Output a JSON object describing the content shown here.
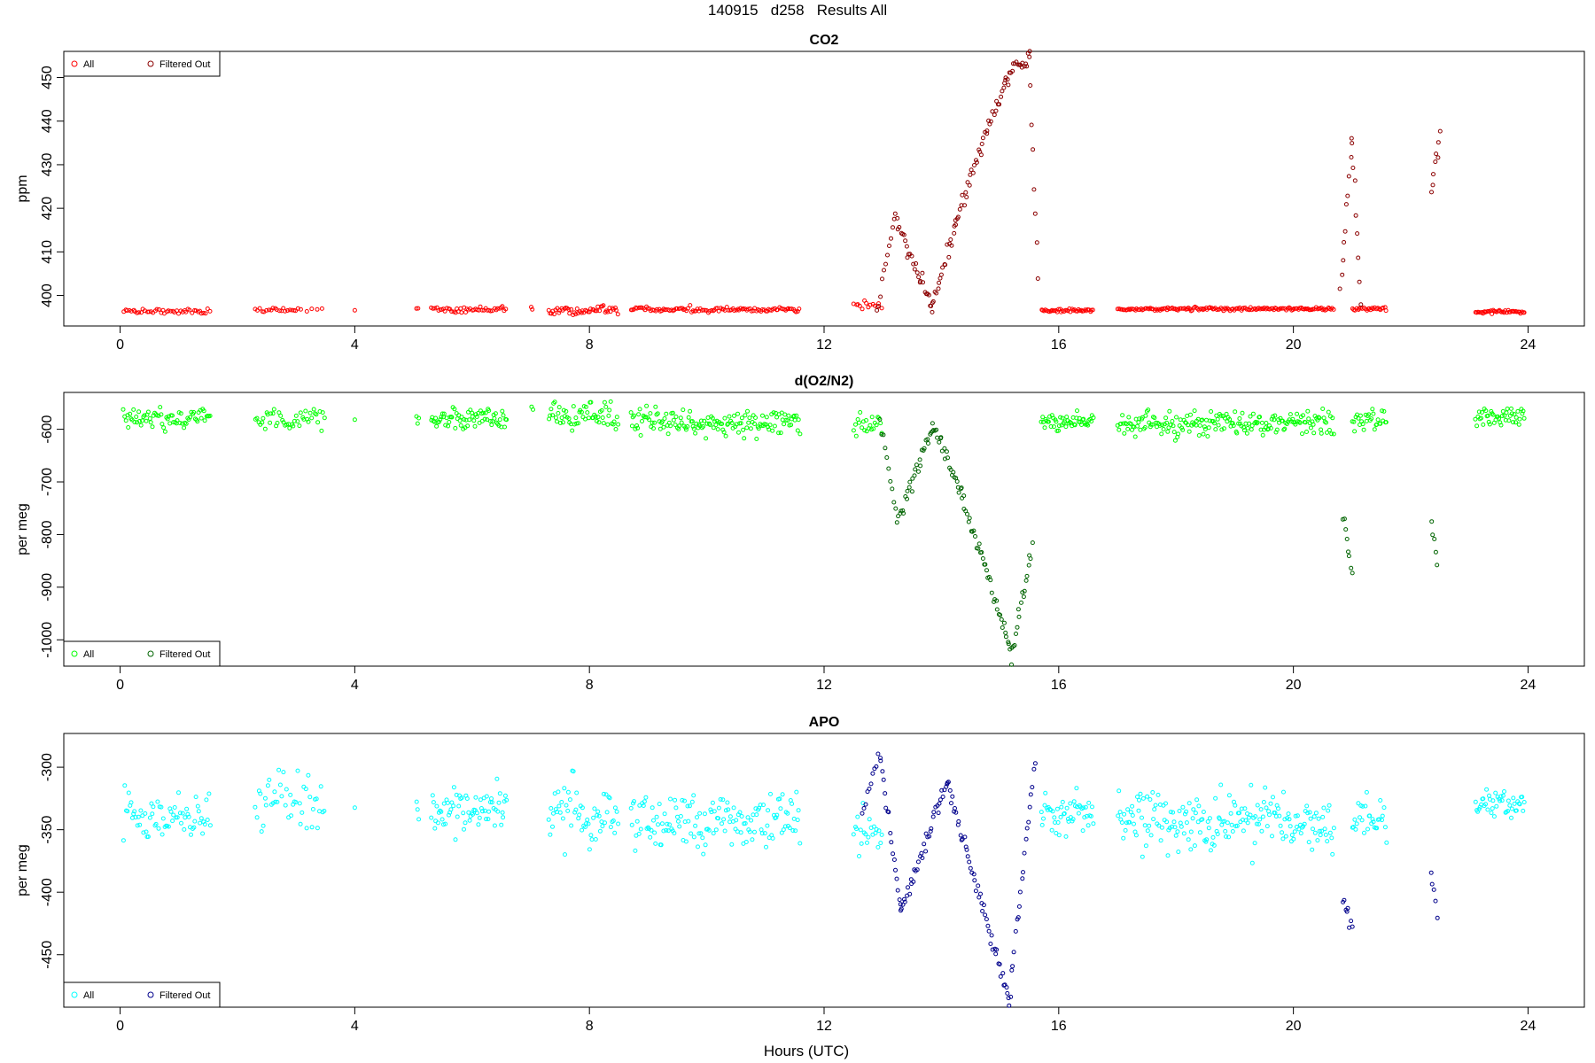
{
  "figure": {
    "super_title": "140915   d258   Results All",
    "xlabel": "Hours (UTC)"
  },
  "chart_data": [
    {
      "type": "scatter",
      "title": "CO2",
      "ylabel": "ppm",
      "xlim": [
        -0.96,
        24.96
      ],
      "ylim": [
        393,
        456
      ],
      "xticks": [
        0,
        4,
        8,
        12,
        16,
        20,
        24
      ],
      "yticks": [
        400,
        410,
        420,
        430,
        440,
        450
      ],
      "legend": {
        "position": "top-left",
        "entries": [
          "All",
          "Filtered Out"
        ]
      },
      "colors": {
        "all": "#ff0000",
        "filtered": "#8b0000"
      },
      "series": [
        {
          "name": "All",
          "segments": [
            {
              "x0": 0.05,
              "x1": 1.55,
              "level": 396.4,
              "noise": 0.3,
              "n": 45
            },
            {
              "x0": 2.3,
              "x1": 3.1,
              "level": 396.6,
              "noise": 0.3,
              "n": 22
            },
            {
              "x0": 3.15,
              "x1": 3.5,
              "level": 396.6,
              "noise": 0.3,
              "n": 4
            },
            {
              "x0": 4.0,
              "x1": 4.0,
              "level": 396.6,
              "noise": 0.2,
              "n": 1
            },
            {
              "x0": 5.05,
              "x1": 5.1,
              "level": 397.0,
              "noise": 0.2,
              "n": 2
            },
            {
              "x0": 5.3,
              "x1": 6.6,
              "level": 396.8,
              "noise": 0.3,
              "n": 45
            },
            {
              "x0": 7.0,
              "x1": 7.05,
              "level": 397.0,
              "noise": 0.2,
              "n": 2
            },
            {
              "x0": 7.3,
              "x1": 8.5,
              "level": 396.5,
              "noise": 0.5,
              "n": 50
            },
            {
              "x0": 8.7,
              "x1": 11.6,
              "level": 396.8,
              "noise": 0.3,
              "n": 110
            },
            {
              "x0": 12.5,
              "x1": 13.0,
              "level": 397.8,
              "noise": 0.6,
              "n": 14
            },
            {
              "x0": 15.7,
              "x1": 16.6,
              "level": 396.5,
              "noise": 0.2,
              "n": 40
            },
            {
              "x0": 17.0,
              "x1": 20.7,
              "level": 396.9,
              "noise": 0.2,
              "n": 160
            },
            {
              "x0": 21.0,
              "x1": 21.6,
              "level": 396.9,
              "noise": 0.2,
              "n": 25
            },
            {
              "x0": 23.1,
              "x1": 23.95,
              "level": 396.3,
              "noise": 0.2,
              "n": 40
            }
          ]
        },
        {
          "name": "Filtered Out",
          "peaks": [
            {
              "x": 13.2,
              "value": 418
            },
            {
              "x": 13.85,
              "value": 397.5
            },
            {
              "x": 14.25,
              "value": 417
            },
            {
              "x": 15.1,
              "value": 450
            },
            {
              "x": 15.5,
              "value": 455
            },
            {
              "x": 15.65,
              "value": 403
            },
            {
              "x": 20.8,
              "value": 400
            },
            {
              "x": 21.0,
              "value": 435
            },
            {
              "x": 21.15,
              "value": 398
            },
            {
              "x": 22.35,
              "value": 424
            },
            {
              "x": 22.5,
              "value": 437
            }
          ]
        }
      ]
    },
    {
      "type": "scatter",
      "title": "d(O2/N2)",
      "ylabel": "per meg",
      "xlim": [
        -0.96,
        24.96
      ],
      "ylim": [
        -1050,
        -530
      ],
      "xticks": [
        0,
        4,
        8,
        12,
        16,
        20,
        24
      ],
      "yticks": [
        -600,
        -700,
        -800,
        -900,
        -1000
      ],
      "legend": {
        "position": "bottom-left",
        "entries": [
          "All",
          "Filtered Out"
        ]
      },
      "colors": {
        "all": "#00ff00",
        "filtered": "#006400"
      },
      "series": [
        {
          "name": "All",
          "segments": [
            {
              "x0": 0.05,
              "x1": 1.55,
              "level": -580,
              "noise": 10,
              "n": 70
            },
            {
              "x0": 2.3,
              "x1": 3.5,
              "level": -582,
              "noise": 12,
              "n": 45
            },
            {
              "x0": 4.0,
              "x1": 4.0,
              "level": -578,
              "noise": 3,
              "n": 1
            },
            {
              "x0": 5.05,
              "x1": 5.1,
              "level": -578,
              "noise": 6,
              "n": 3
            },
            {
              "x0": 5.3,
              "x1": 6.6,
              "level": -580,
              "noise": 10,
              "n": 70
            },
            {
              "x0": 7.0,
              "x1": 7.05,
              "level": -560,
              "noise": 5,
              "n": 2
            },
            {
              "x0": 7.3,
              "x1": 8.5,
              "level": -575,
              "noise": 14,
              "n": 60
            },
            {
              "x0": 8.7,
              "x1": 11.6,
              "level": -588,
              "noise": 12,
              "n": 150
            },
            {
              "x0": 12.5,
              "x1": 13.0,
              "level": -590,
              "noise": 10,
              "n": 22
            },
            {
              "x0": 15.7,
              "x1": 16.6,
              "level": -585,
              "noise": 8,
              "n": 50
            },
            {
              "x0": 17.0,
              "x1": 20.7,
              "level": -588,
              "noise": 11,
              "n": 200
            },
            {
              "x0": 21.0,
              "x1": 21.6,
              "level": -582,
              "noise": 10,
              "n": 30
            },
            {
              "x0": 23.1,
              "x1": 23.95,
              "level": -575,
              "noise": 8,
              "n": 45
            }
          ]
        },
        {
          "name": "Filtered Out",
          "peaks": [
            {
              "x": 13.25,
              "value": -775
            },
            {
              "x": 13.85,
              "value": -595
            },
            {
              "x": 14.35,
              "value": -725
            },
            {
              "x": 15.2,
              "value": -1025
            },
            {
              "x": 15.55,
              "value": -830
            },
            {
              "x": 20.85,
              "value": -765
            },
            {
              "x": 21.0,
              "value": -875
            },
            {
              "x": 22.35,
              "value": -770
            },
            {
              "x": 22.45,
              "value": -860
            }
          ]
        }
      ]
    },
    {
      "type": "scatter",
      "title": "APO",
      "ylabel": "per meg",
      "xlim": [
        -0.96,
        24.96
      ],
      "ylim": [
        -492,
        -273
      ],
      "xticks": [
        0,
        4,
        8,
        12,
        16,
        20,
        24
      ],
      "yticks": [
        -300,
        -350,
        -400,
        -450
      ],
      "legend": {
        "position": "bottom-left",
        "entries": [
          "All",
          "Filtered Out"
        ]
      },
      "colors": {
        "all": "#00ffff",
        "filtered": "#00008b"
      },
      "series": [
        {
          "name": "All",
          "segments": [
            {
              "x0": 0.05,
              "x1": 1.55,
              "level": -338,
              "noise": 9,
              "n": 70
            },
            {
              "x0": 2.3,
              "x1": 3.5,
              "level": -332,
              "noise": 13,
              "n": 45
            },
            {
              "x0": 4.0,
              "x1": 4.0,
              "level": -333,
              "noise": 3,
              "n": 1
            },
            {
              "x0": 5.05,
              "x1": 5.1,
              "level": -333,
              "noise": 5,
              "n": 3
            },
            {
              "x0": 5.3,
              "x1": 6.6,
              "level": -335,
              "noise": 10,
              "n": 70
            },
            {
              "x0": 7.3,
              "x1": 8.5,
              "level": -335,
              "noise": 14,
              "n": 60
            },
            {
              "x0": 8.7,
              "x1": 11.6,
              "level": -343,
              "noise": 11,
              "n": 150
            },
            {
              "x0": 12.5,
              "x1": 13.0,
              "level": -350,
              "noise": 12,
              "n": 22
            },
            {
              "x0": 15.7,
              "x1": 16.6,
              "level": -338,
              "noise": 8,
              "n": 50
            },
            {
              "x0": 17.0,
              "x1": 20.7,
              "level": -345,
              "noise": 12,
              "n": 200
            },
            {
              "x0": 21.0,
              "x1": 21.6,
              "level": -342,
              "noise": 10,
              "n": 30
            },
            {
              "x0": 23.1,
              "x1": 23.95,
              "level": -330,
              "noise": 6,
              "n": 45
            }
          ]
        },
        {
          "name": "Filtered Out",
          "peaks": [
            {
              "x": 12.95,
              "value": -287
            },
            {
              "x": 13.3,
              "value": -415
            },
            {
              "x": 14.1,
              "value": -312
            },
            {
              "x": 15.15,
              "value": -487
            },
            {
              "x": 15.6,
              "value": -292
            },
            {
              "x": 20.85,
              "value": -405
            },
            {
              "x": 21.0,
              "value": -427
            },
            {
              "x": 22.35,
              "value": -385
            },
            {
              "x": 22.45,
              "value": -418
            }
          ]
        }
      ]
    }
  ]
}
